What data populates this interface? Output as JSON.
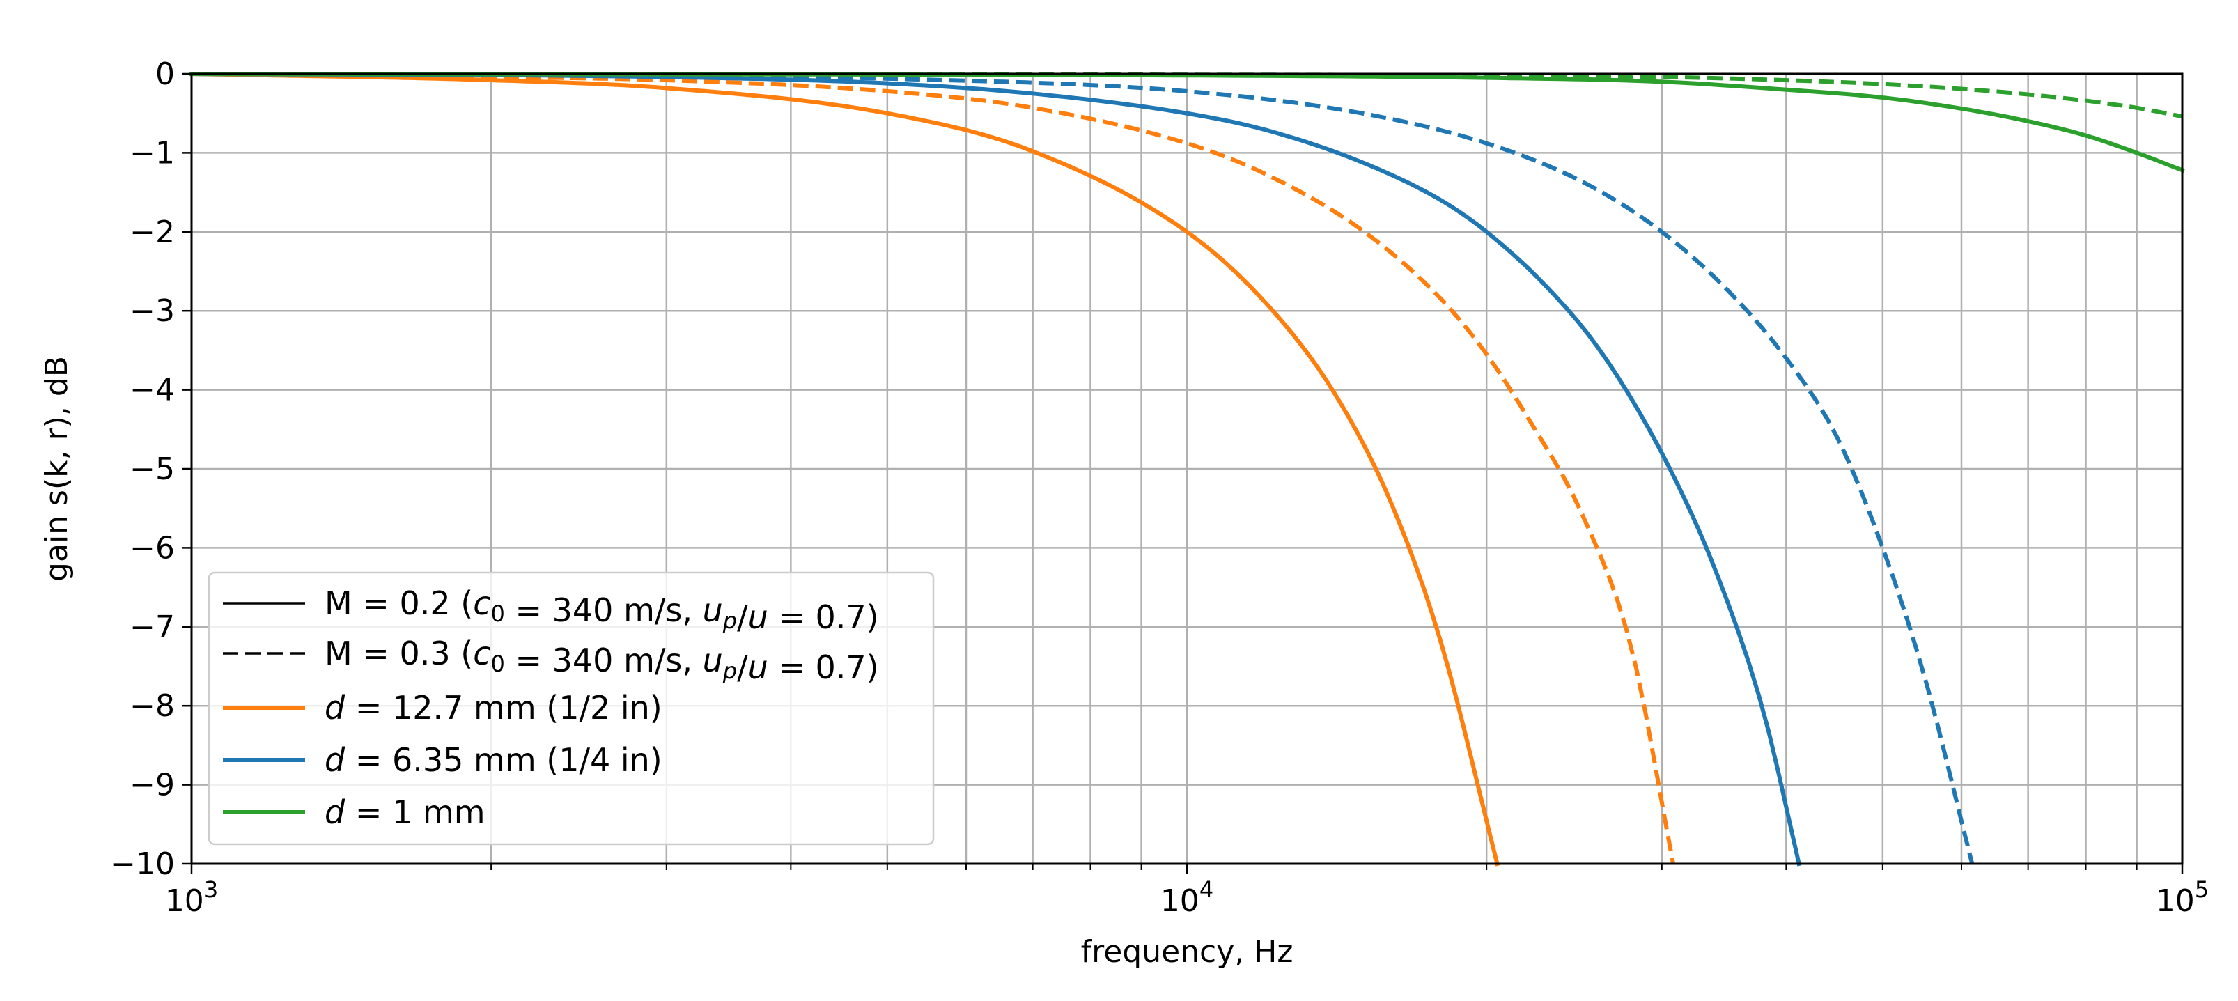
{
  "chart_data": {
    "type": "line",
    "xscale": "log",
    "xlim": [
      1000,
      100000
    ],
    "ylim": [
      -10,
      0
    ],
    "xlabel": "frequency, Hz",
    "ylabel": "gain s(k, r), dB",
    "xticks": [
      {
        "value": 1000,
        "base": "10",
        "exp": "3"
      },
      {
        "value": 10000,
        "base": "10",
        "exp": "4"
      },
      {
        "value": 100000,
        "base": "10",
        "exp": "5"
      }
    ],
    "yticks": [
      {
        "value": 0,
        "label": "0"
      },
      {
        "value": -1,
        "label": "−1"
      },
      {
        "value": -2,
        "label": "−2"
      },
      {
        "value": -3,
        "label": "−3"
      },
      {
        "value": -4,
        "label": "−4"
      },
      {
        "value": -5,
        "label": "−5"
      },
      {
        "value": -6,
        "label": "−6"
      },
      {
        "value": -7,
        "label": "−7"
      },
      {
        "value": -8,
        "label": "−8"
      },
      {
        "value": -9,
        "label": "−9"
      },
      {
        "value": -10,
        "label": "−10"
      }
    ],
    "grid": true,
    "legend_position": "lower-left",
    "series": [
      {
        "name": "d = 12.7 mm (1/2 in), M = 0.2",
        "color": "#ff7f0e",
        "style": "solid",
        "x": [
          1000,
          2000,
          3000,
          5000,
          7000,
          10000,
          12000,
          14000,
          16000,
          18000,
          20500
        ],
        "y": [
          0,
          -0.08,
          -0.18,
          -0.5,
          -0.98,
          -2.0,
          -2.9,
          -4.0,
          -5.4,
          -7.2,
          -10
        ]
      },
      {
        "name": "d = 12.7 mm (1/2 in), M = 0.3",
        "color": "#ff7f0e",
        "style": "dashed",
        "x": [
          1000,
          2000,
          3000,
          5000,
          7000,
          10000,
          12000,
          15000,
          18000,
          20000,
          22000,
          25000,
          28000,
          30800
        ],
        "y": [
          0,
          -0.04,
          -0.08,
          -0.22,
          -0.43,
          -0.88,
          -1.27,
          -1.98,
          -2.85,
          -3.55,
          -4.35,
          -5.6,
          -7.3,
          -10
        ]
      },
      {
        "name": "d = 6.35 mm (1/4 in), M = 0.2",
        "color": "#1f77b4",
        "style": "solid",
        "x": [
          1000,
          3000,
          5000,
          7000,
          10000,
          12000,
          15000,
          18000,
          20000,
          23000,
          26000,
          30000,
          34000,
          38000,
          41200
        ],
        "y": [
          0,
          -0.04,
          -0.12,
          -0.25,
          -0.5,
          -0.71,
          -1.12,
          -1.6,
          -2.0,
          -2.7,
          -3.5,
          -4.8,
          -6.3,
          -8.1,
          -10
        ]
      },
      {
        "name": "d = 6.35 mm (1/4 in), M = 0.3",
        "color": "#1f77b4",
        "style": "dashed",
        "x": [
          1000,
          3000,
          5000,
          10000,
          15000,
          20000,
          25000,
          30000,
          35000,
          40000,
          45000,
          50000,
          55000,
          61500
        ],
        "y": [
          0,
          -0.02,
          -0.06,
          -0.22,
          -0.5,
          -0.88,
          -1.37,
          -2.0,
          -2.75,
          -3.6,
          -4.6,
          -6.0,
          -7.6,
          -10
        ]
      },
      {
        "name": "d = 1 mm, M = 0.2",
        "color": "#2ca02c",
        "style": "solid",
        "x": [
          1000,
          10000,
          20000,
          30000,
          40000,
          50000,
          60000,
          70000,
          80000,
          90000,
          100000
        ],
        "y": [
          0,
          -0.02,
          -0.05,
          -0.1,
          -0.2,
          -0.3,
          -0.44,
          -0.6,
          -0.78,
          -1.0,
          -1.22
        ]
      },
      {
        "name": "d = 1 mm, M = 0.3",
        "color": "#2ca02c",
        "style": "dashed",
        "x": [
          1000,
          10000,
          20000,
          30000,
          40000,
          50000,
          60000,
          70000,
          80000,
          90000,
          100000
        ],
        "y": [
          0,
          -0.01,
          -0.02,
          -0.04,
          -0.08,
          -0.13,
          -0.19,
          -0.26,
          -0.34,
          -0.43,
          -0.54
        ]
      }
    ],
    "legend": [
      {
        "style": "solid",
        "color": "#000000",
        "label_parts": [
          {
            "text": "M = 0.2 (",
            "math": false
          },
          {
            "text": "c",
            "math": true
          },
          {
            "text": "0",
            "math": false,
            "sub": true
          },
          {
            "text": " = 340 m/s, ",
            "math": false
          },
          {
            "text": "u",
            "math": true
          },
          {
            "text": "p",
            "math": true,
            "sub": true
          },
          {
            "text": "/",
            "math": false
          },
          {
            "text": "u",
            "math": true
          },
          {
            "text": " = 0.7)",
            "math": false
          }
        ]
      },
      {
        "style": "dashed",
        "color": "#000000",
        "label_parts": [
          {
            "text": "M = 0.3 (",
            "math": false
          },
          {
            "text": "c",
            "math": true
          },
          {
            "text": "0",
            "math": false,
            "sub": true
          },
          {
            "text": " = 340 m/s, ",
            "math": false
          },
          {
            "text": "u",
            "math": true
          },
          {
            "text": "p",
            "math": true,
            "sub": true
          },
          {
            "text": "/",
            "math": false
          },
          {
            "text": "u",
            "math": true
          },
          {
            "text": " = 0.7)",
            "math": false
          }
        ]
      },
      {
        "style": "solid",
        "color": "#ff7f0e",
        "label_parts": [
          {
            "text": "d",
            "math": true
          },
          {
            "text": " = 12.7 mm (1/2 in)",
            "math": false
          }
        ]
      },
      {
        "style": "solid",
        "color": "#1f77b4",
        "label_parts": [
          {
            "text": "d",
            "math": true
          },
          {
            "text": " = 6.35 mm (1/4 in)",
            "math": false
          }
        ]
      },
      {
        "style": "solid",
        "color": "#2ca02c",
        "label_parts": [
          {
            "text": "d",
            "math": true
          },
          {
            "text": " = 1 mm",
            "math": false
          }
        ]
      }
    ]
  }
}
